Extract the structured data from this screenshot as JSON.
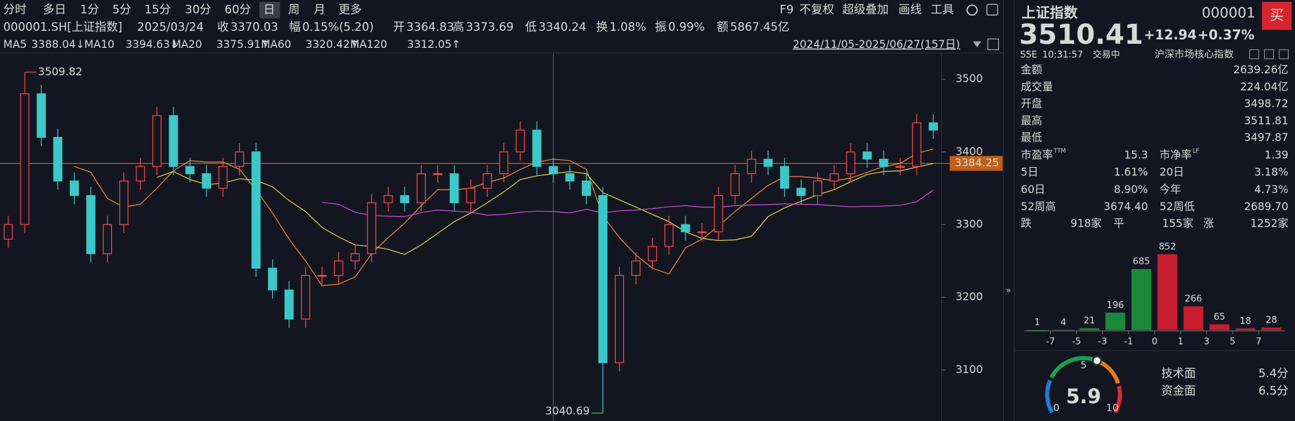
{
  "toolbar": {
    "tabs": [
      "分时",
      "多日",
      "1分",
      "5分",
      "15分",
      "30分",
      "60分",
      "日",
      "周",
      "月",
      "更多"
    ],
    "tools": [
      "F9",
      "不复权",
      "超级叠加",
      "画线",
      "工具"
    ]
  },
  "info": {
    "code": "000001.SH[上证指数]",
    "date": "2025/03/24",
    "items": [
      {
        "label": "收",
        "value": "3370.03",
        "color": "#ff4a4a"
      },
      {
        "label": "幅",
        "value": "0.15%(5.20)",
        "color": "#ff4a4a"
      },
      {
        "label": "开",
        "value": "3364.83",
        "color": "#dddddd"
      },
      {
        "label": "高",
        "value": "3373.69",
        "color": "#ff4a4a"
      },
      {
        "label": "低",
        "value": "3340.24",
        "color": "#3cc85a"
      },
      {
        "label": "换",
        "value": "1.08%",
        "color": "#dddddd"
      },
      {
        "label": "振",
        "value": "0.99%",
        "color": "#dddddd"
      },
      {
        "label": "额",
        "value": "5867.45亿",
        "color": "#dddddd"
      }
    ]
  },
  "ma": [
    {
      "name": "MA5",
      "value": "3388.04↓",
      "color": "#f08a3c"
    },
    {
      "name": "MA10",
      "value": "3394.63↓",
      "color": "#e8d44a"
    },
    {
      "name": "MA20",
      "value": "3375.91↑",
      "color": "#d04adc"
    },
    {
      "name": "MA60",
      "value": "3320.42↑",
      "color": "#3cb45a"
    },
    {
      "name": "MA120",
      "value": "3312.05↑",
      "color": "#4ac8e8"
    }
  ],
  "range": "2024/11/05-2025/06/27(157日)",
  "chart_data": {
    "type": "candlestick",
    "open": [
      3280,
      3300,
      3480,
      3420,
      3360,
      3340,
      3260,
      3300,
      3360,
      3380,
      3450,
      3380,
      3370,
      3350,
      3380,
      3400,
      3240,
      3210,
      3170,
      3230,
      3230,
      3250,
      3260,
      3330,
      3340,
      3330,
      3370,
      3370,
      3330,
      3350,
      3370,
      3400,
      3430,
      3380,
      3370,
      3360,
      3340,
      3110,
      3230,
      3250,
      3270,
      3300,
      3290,
      3290,
      3340,
      3370,
      3390,
      3380,
      3350,
      3340,
      3360,
      3370,
      3400,
      3390,
      3380,
      3380,
      3440
    ],
    "high": [
      3312,
      3509.82,
      3492,
      3432,
      3372,
      3352,
      3312,
      3372,
      3392,
      3462,
      3462,
      3392,
      3382,
      3392,
      3412,
      3412,
      3252,
      3222,
      3242,
      3242,
      3262,
      3272,
      3342,
      3352,
      3352,
      3382,
      3382,
      3382,
      3362,
      3382,
      3412,
      3442,
      3442,
      3392,
      3382,
      3372,
      3352,
      3242,
      3262,
      3282,
      3312,
      3312,
      3302,
      3352,
      3382,
      3402,
      3402,
      3392,
      3362,
      3372,
      3382,
      3412,
      3412,
      3402,
      3392,
      3452,
      3452
    ],
    "low": [
      3268,
      3288,
      3408,
      3348,
      3328,
      3248,
      3248,
      3288,
      3348,
      3368,
      3368,
      3358,
      3338,
      3338,
      3368,
      3228,
      3198,
      3158,
      3158,
      3218,
      3218,
      3238,
      3248,
      3318,
      3318,
      3318,
      3358,
      3318,
      3318,
      3338,
      3358,
      3388,
      3368,
      3358,
      3348,
      3328,
      3040.69,
      3098,
      3218,
      3238,
      3258,
      3278,
      3278,
      3278,
      3328,
      3358,
      3368,
      3338,
      3328,
      3328,
      3348,
      3358,
      3378,
      3368,
      3368,
      3368,
      3418
    ],
    "close": [
      3300,
      3480,
      3420,
      3360,
      3340,
      3260,
      3300,
      3360,
      3380,
      3450,
      3380,
      3370,
      3350,
      3380,
      3400,
      3240,
      3210,
      3170,
      3230,
      3230,
      3250,
      3260,
      3330,
      3340,
      3330,
      3370,
      3370,
      3330,
      3350,
      3370,
      3400,
      3430,
      3380,
      3370,
      3360,
      3340,
      3110,
      3230,
      3250,
      3270,
      3300,
      3290,
      3290,
      3340,
      3370,
      3390,
      3380,
      3350,
      3340,
      3360,
      3370,
      3400,
      3390,
      3380,
      3380,
      3440,
      3430
    ],
    "up_color": "#ff4a4a",
    "down_color": "#3cc8c8",
    "ylim": [
      3030,
      3535
    ],
    "yticks": [
      3100,
      3200,
      3300,
      3400,
      3500
    ],
    "reference": 3384.25,
    "max_label": "3509.82",
    "min_label": "3040.69"
  },
  "quote": {
    "name": "上证指数",
    "code": "000001",
    "price": "3510.41",
    "change": "+12.94",
    "pct": "+0.37%",
    "buy": "买",
    "exchange": "SSE",
    "time": "10:31:57",
    "status": "交易中",
    "desc": "沪深市场核心指数"
  },
  "stats": [
    {
      "label": "金额",
      "value": "2639.26亿",
      "color": "#dddddd"
    },
    {
      "label": "成交量",
      "value": "224.04亿",
      "color": "#dddddd"
    },
    {
      "label": "开盘",
      "value": "3498.72",
      "color": "#ff4a4a"
    },
    {
      "label": "最高",
      "value": "3511.81",
      "color": "#ff4a4a"
    },
    {
      "label": "最低",
      "value": "3497.87",
      "color": "#ff4a4a"
    }
  ],
  "pairs": [
    [
      {
        "label": "市盈率",
        "sup": "TTM",
        "value": "15.3",
        "color": "#dddddd"
      },
      {
        "label": "市净率",
        "sup": "LF",
        "value": "1.39",
        "color": "#dddddd"
      }
    ],
    [
      {
        "label": "5日",
        "value": "1.61%",
        "color": "#ff4a4a"
      },
      {
        "label": "20日",
        "value": "3.18%",
        "color": "#ff4a4a"
      }
    ],
    [
      {
        "label": "60日",
        "value": "8.90%",
        "color": "#ff4a4a"
      },
      {
        "label": "今年",
        "value": "4.73%",
        "color": "#ff4a4a"
      }
    ],
    [
      {
        "label": "52周高",
        "value": "3674.40",
        "color": "#dddddd"
      },
      {
        "label": "52周低",
        "value": "2689.70",
        "color": "#dddddd"
      }
    ]
  ],
  "breadth": {
    "down_label": "跌",
    "down": "918家",
    "flat_label": "平",
    "flat": "155家",
    "up_label": "涨",
    "up": "1252家"
  },
  "distribution": {
    "type": "bar",
    "values": [
      1,
      4,
      21,
      196,
      685,
      852,
      266,
      65,
      18,
      28
    ],
    "colors": [
      "#1a8a3a",
      "#1a8a3a",
      "#1a8a3a",
      "#1a8a3a",
      "#1a8a3a",
      "#c81e2d",
      "#c81e2d",
      "#c81e2d",
      "#c81e2d",
      "#c81e2d"
    ],
    "label_colors": [
      "#3cc85a",
      "#3cc85a",
      "#3cc85a",
      "#3cc85a",
      "#3cc85a",
      "#ff4a4a",
      "#ff4a4a",
      "#ff4a4a",
      "#ff4a4a",
      "#ff4a4a"
    ],
    "ticks": [
      -7,
      -5,
      -3,
      -1,
      0,
      1,
      3,
      5,
      7
    ]
  },
  "gauge": {
    "score": 5.9,
    "min": 0,
    "mid": 5,
    "max": 10,
    "items": [
      {
        "label": "技术面",
        "value": "5.4分"
      },
      {
        "label": "资金面",
        "value": "6.5分"
      }
    ]
  }
}
